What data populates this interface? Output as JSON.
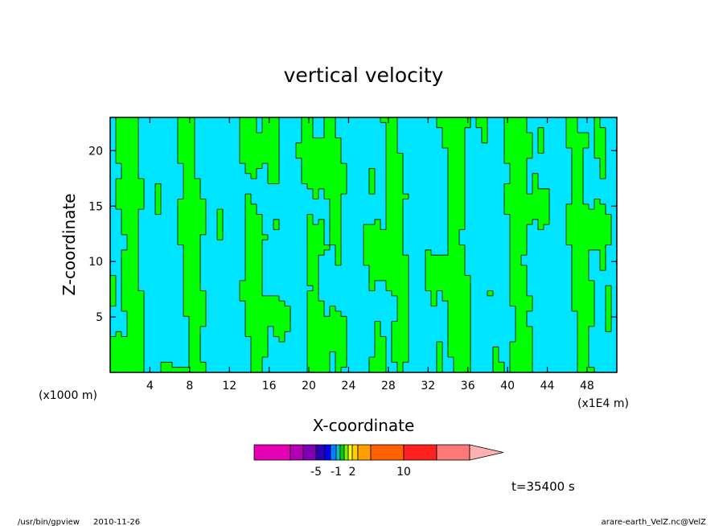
{
  "chart_data": {
    "type": "heatmap",
    "title": "vertical velocity",
    "xlabel": "X-coordinate",
    "ylabel": "Z-coordinate",
    "x_unit_left": "(x1000 m)",
    "x_unit_right": "(x1E4 m)",
    "xlim": [
      0,
      51
    ],
    "ylim": [
      0,
      23
    ],
    "x_ticks": [
      4,
      8,
      12,
      16,
      20,
      24,
      28,
      32,
      36,
      40,
      44,
      48
    ],
    "y_ticks": [
      5,
      10,
      15,
      20
    ],
    "grid": false,
    "colors": {
      "positive": "#00ff00",
      "negative": "#00e5ff",
      "contour": "#000000"
    },
    "colorbar": {
      "levels": [
        -5,
        -1,
        2,
        10
      ],
      "labels": [
        "-5",
        "-1",
        "2",
        "10"
      ],
      "colors": [
        "#e600b4",
        "#b400b4",
        "#7d00b4",
        "#2b00b4",
        "#0000ff",
        "#0080ff",
        "#00c0c0",
        "#00d200",
        "#80f000",
        "#ffff00",
        "#ffd000",
        "#ffa000",
        "#ff6000",
        "#ff2020",
        "#ff7878",
        "#ffb0b0"
      ]
    }
  },
  "time_label": "t=35400 s",
  "footer": {
    "program": "/usr/bin/gpview",
    "date": "2010-11-26",
    "source": "arare-earth_VelZ.nc@VelZ"
  }
}
